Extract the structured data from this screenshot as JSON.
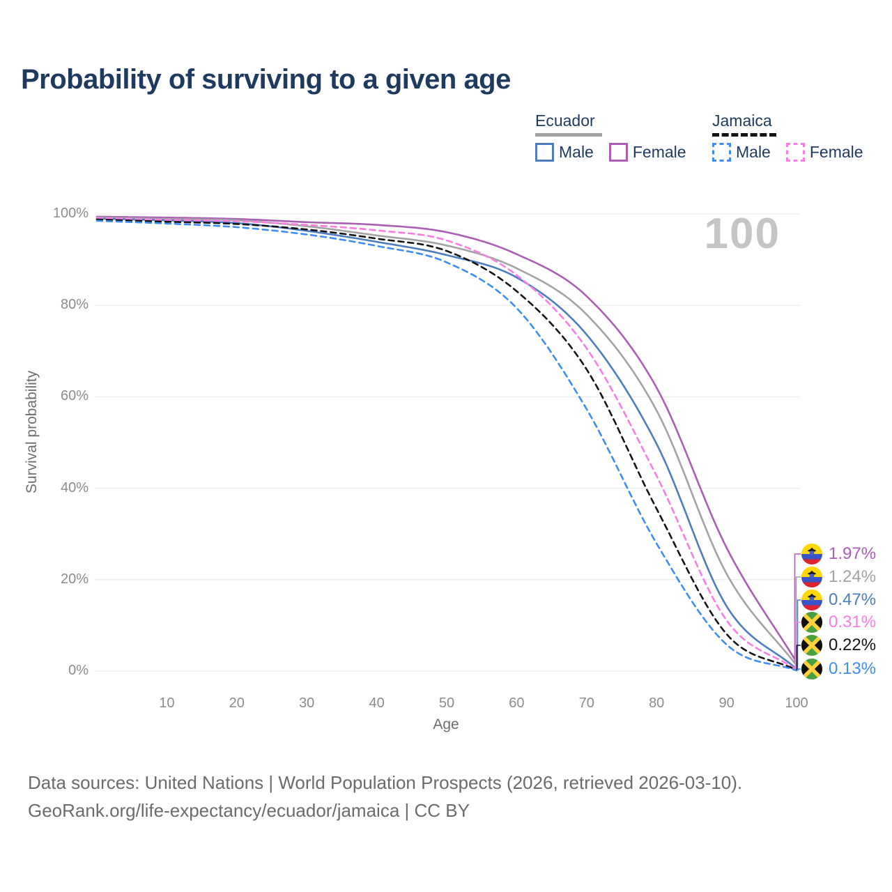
{
  "title": "Probability of surviving to a given age",
  "legend": {
    "groups": [
      {
        "label": "Ecuador",
        "line_style": "solid",
        "underline_color": "#a3a3a3",
        "items": [
          {
            "label": "Male",
            "color": "#4d7dbf",
            "dashed": false
          },
          {
            "label": "Female",
            "color": "#aa5fb5",
            "dashed": false
          }
        ]
      },
      {
        "label": "Jamaica",
        "line_style": "dashed",
        "underline_color": "#141414",
        "items": [
          {
            "label": "Male",
            "color": "#3e8df5",
            "dashed": true
          },
          {
            "label": "Female",
            "color": "#fb7de4",
            "dashed": true
          }
        ]
      }
    ]
  },
  "chart_data": {
    "type": "line",
    "title": "Probability of surviving to a given age",
    "xlabel": "Age",
    "ylabel": "Survival probability",
    "xlim": [
      0,
      100
    ],
    "ylim": [
      0,
      100
    ],
    "grid": true,
    "annotation": "100",
    "x_ticks": [
      "10",
      "20",
      "30",
      "40",
      "50",
      "60",
      "70",
      "80",
      "90",
      "100"
    ],
    "x_tick_values": [
      10,
      20,
      30,
      40,
      50,
      60,
      70,
      80,
      90,
      100
    ],
    "y_ticks": [
      "0%",
      "20%",
      "40%",
      "60%",
      "80%",
      "100%"
    ],
    "y_tick_values": [
      0,
      20,
      40,
      60,
      80,
      100
    ],
    "x": [
      0,
      10,
      20,
      30,
      40,
      50,
      60,
      70,
      80,
      90,
      100
    ],
    "series": [
      {
        "name": "Ecuador Female",
        "country": "Ecuador",
        "sex": "Female",
        "color": "#aa5fb5",
        "dashed": false,
        "flag": "ecuador",
        "end_label": "1.97%",
        "end_value": 1.97,
        "values": [
          99.4,
          99.2,
          98.9,
          98.2,
          97.6,
          96.0,
          91.2,
          82.0,
          62.0,
          27.0,
          1.97
        ]
      },
      {
        "name": "Ecuador",
        "country": "Ecuador",
        "sex": "Both",
        "color": "#a3a3a3",
        "dashed": false,
        "flag": "ecuador",
        "end_label": "1.24%",
        "end_value": 1.24,
        "values": [
          99.2,
          98.9,
          98.6,
          97.3,
          95.3,
          93.1,
          88.1,
          78.0,
          57.0,
          21.3,
          1.24
        ]
      },
      {
        "name": "Ecuador Male",
        "country": "Ecuador",
        "sex": "Male",
        "color": "#4d7dbf",
        "dashed": false,
        "flag": "ecuador",
        "end_label": "0.47%",
        "end_value": 0.47,
        "values": [
          99.0,
          98.6,
          98.0,
          96.3,
          93.9,
          91.0,
          86.1,
          73.6,
          49.7,
          14.2,
          0.47
        ]
      },
      {
        "name": "Jamaica Female",
        "country": "Jamaica",
        "sex": "Female",
        "color": "#fb7de4",
        "dashed": true,
        "flag": "jamaica",
        "end_label": "0.31%",
        "end_value": 0.31,
        "values": [
          99.1,
          98.7,
          98.4,
          97.6,
          96.4,
          94.2,
          86.6,
          70.6,
          42.7,
          11.1,
          0.31
        ]
      },
      {
        "name": "Jamaica",
        "country": "Jamaica",
        "sex": "Both",
        "color": "#141414",
        "dashed": true,
        "flag": "jamaica",
        "end_label": "0.22%",
        "end_value": 0.22,
        "values": [
          98.8,
          98.3,
          97.8,
          96.6,
          94.6,
          91.9,
          83.1,
          66.0,
          35.5,
          8.1,
          0.22
        ]
      },
      {
        "name": "Jamaica Male",
        "country": "Jamaica",
        "sex": "Male",
        "color": "#3e8df5",
        "dashed": true,
        "flag": "jamaica",
        "end_label": "0.13%",
        "end_value": 0.13,
        "values": [
          98.5,
          97.9,
          97.1,
          95.5,
          93.0,
          89.4,
          79.4,
          57.3,
          27.9,
          5.8,
          0.13
        ]
      }
    ],
    "legend_position": "top-right"
  },
  "colors": {
    "title_text": "#1e3a5f",
    "tick_text": "#8c8c8c",
    "axis_label_text": "#6e6e6e",
    "gridline": "#e8e8e8",
    "annotation_text": "#c5c5c5",
    "footer_text": "#6b6b6b"
  },
  "flags": {
    "ecuador": {
      "yellow": "#ffd800",
      "blue": "#3953c8",
      "red": "#dd2230",
      "crest": "#14161f",
      "crest_blue": "#4a5fc0"
    },
    "jamaica": {
      "green": "#4aa03f",
      "black": "#101010",
      "gold": "#ffd23d"
    }
  },
  "footer": {
    "line1": "Data sources: United Nations | World Population Prospects (2026, retrieved 2026-03-10).",
    "line2": "GeoRank.org/life-expectancy/ecuador/jamaica | CC BY"
  }
}
